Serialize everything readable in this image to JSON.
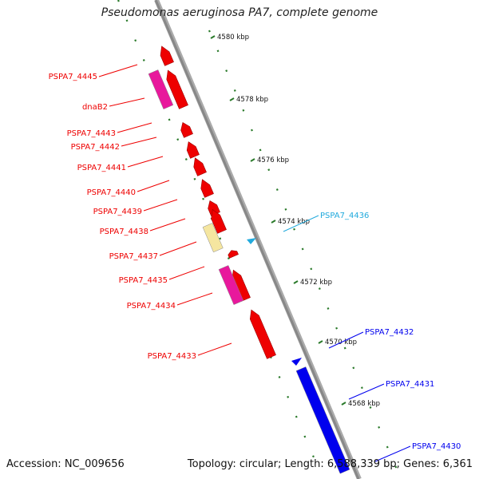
{
  "title": "Pseudomonas aeruginosa PA7, complete genome",
  "footer": {
    "accession": "Accession: NC_009656",
    "summary": "Topology: circular; Length: 6,588,339 bp; Genes: 6,361"
  },
  "colors": {
    "red_gene": "#ee0000",
    "magenta_gene": "#e8189c",
    "yellow_gene": "#f5e6a0",
    "blue_gene": "#0000ee",
    "cyan_label": "#22aadd",
    "tick_green": "#2a7a2a",
    "backbone": "#888888"
  },
  "scale_ticks": [
    "4580 kbp",
    "4578 kbp",
    "4576 kbp",
    "4574 kbp",
    "4572 kbp",
    "4570 kbp",
    "4568 kbp"
  ],
  "genes": [
    {
      "name": "PSPA7_4445",
      "color": "red"
    },
    {
      "name": "dnaB2",
      "color": "red"
    },
    {
      "name": "PSPA7_4443",
      "color": "red"
    },
    {
      "name": "PSPA7_4442",
      "color": "red"
    },
    {
      "name": "PSPA7_4441",
      "color": "red"
    },
    {
      "name": "PSPA7_4440",
      "color": "red"
    },
    {
      "name": "PSPA7_4439",
      "color": "red"
    },
    {
      "name": "PSPA7_4438",
      "color": "red"
    },
    {
      "name": "PSPA7_4437",
      "color": "red"
    },
    {
      "name": "PSPA7_4435",
      "color": "red"
    },
    {
      "name": "PSPA7_4434",
      "color": "red"
    },
    {
      "name": "PSPA7_4433",
      "color": "red"
    },
    {
      "name": "PSPA7_4436",
      "color": "cyan"
    },
    {
      "name": "PSPA7_4432",
      "color": "blue"
    },
    {
      "name": "PSPA7_4431",
      "color": "blue"
    },
    {
      "name": "PSPA7_4430",
      "color": "blue"
    }
  ]
}
